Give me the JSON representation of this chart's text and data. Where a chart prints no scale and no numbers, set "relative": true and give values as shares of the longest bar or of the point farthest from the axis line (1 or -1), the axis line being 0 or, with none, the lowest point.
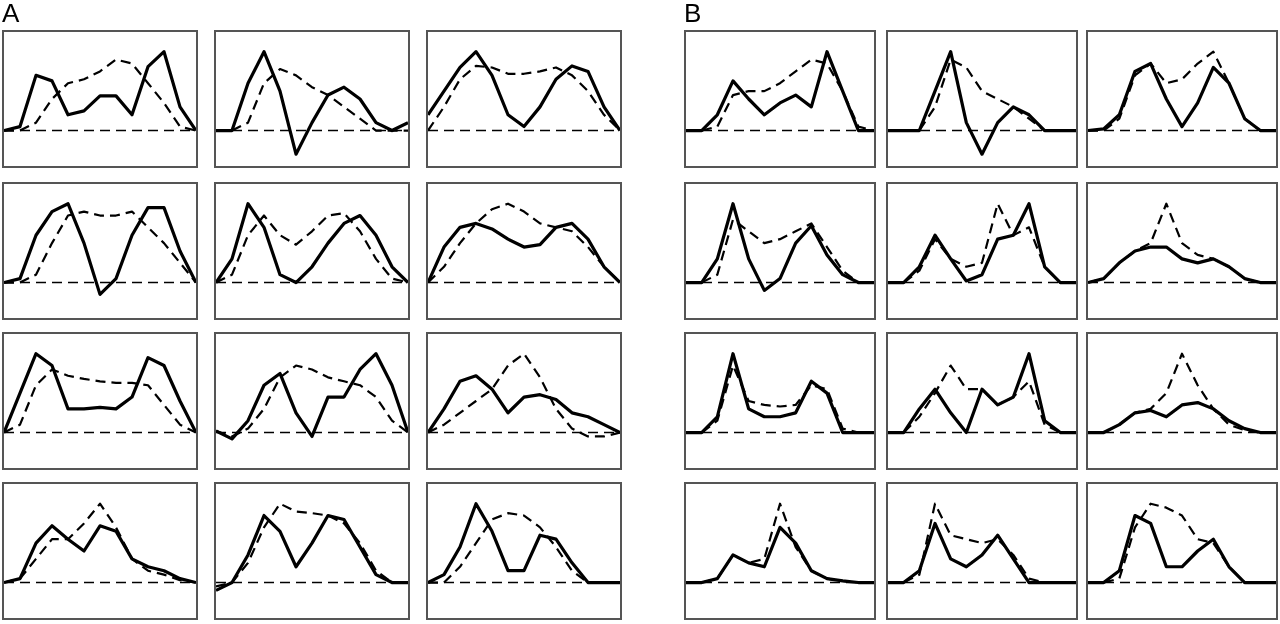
{
  "chart_data": [
    {
      "type": "line",
      "relative": true,
      "tick_labels": false,
      "annotations": [
        "A"
      ],
      "categories": [
        null,
        null,
        null,
        null,
        null,
        null,
        null,
        null,
        null,
        null,
        null,
        null,
        null
      ],
      "ref_lines": [
        {
          "axis": "y",
          "value": 0,
          "line_style": "dashed",
          "color": "#000000"
        }
      ],
      "series": [
        {
          "color": "#000000",
          "line_style": "solid",
          "values": [
            0,
            0.05,
            0.7,
            0.63,
            0.2,
            0.25,
            0.44,
            0.44,
            0.2,
            0.81,
            1,
            0.3,
            0
          ]
        },
        {
          "color": "#000000",
          "line_style": "dashed",
          "values": [
            0,
            0,
            0.1,
            0.4,
            0.6,
            0.65,
            0.75,
            0.9,
            0.85,
            0.6,
            0.35,
            0.05,
            0
          ]
        }
      ]
    },
    {
      "type": "line",
      "relative": true,
      "tick_labels": false,
      "categories": [
        null,
        null,
        null,
        null,
        null,
        null,
        null,
        null,
        null,
        null,
        null,
        null,
        null
      ],
      "ref_lines": [
        {
          "axis": "y",
          "value": 0,
          "line_style": "dashed",
          "color": "#000000"
        }
      ],
      "series": [
        {
          "color": "#000000",
          "line_style": "solid",
          "values": [
            0,
            0,
            0.6,
            1,
            0.5,
            -0.3,
            0.1,
            0.45,
            0.55,
            0.4,
            0.1,
            0,
            0.1
          ]
        },
        {
          "color": "#000000",
          "line_style": "dashed",
          "values": [
            0,
            0,
            0.1,
            0.6,
            0.78,
            0.7,
            0.55,
            0.45,
            0.3,
            0.15,
            0,
            0,
            0
          ]
        }
      ]
    },
    {
      "type": "line",
      "relative": true,
      "tick_labels": false,
      "categories": [
        null,
        null,
        null,
        null,
        null,
        null,
        null,
        null,
        null,
        null,
        null,
        null,
        null
      ],
      "ref_lines": [
        {
          "axis": "y",
          "value": 0,
          "line_style": "dashed",
          "color": "#000000"
        }
      ],
      "series": [
        {
          "color": "#000000",
          "line_style": "solid",
          "values": [
            0.2,
            0.5,
            0.8,
            1,
            0.7,
            0.2,
            0.05,
            0.3,
            0.65,
            0.82,
            0.75,
            0.3,
            0
          ]
        },
        {
          "color": "#000000",
          "line_style": "dashed",
          "values": [
            0,
            0.3,
            0.65,
            0.82,
            0.8,
            0.72,
            0.72,
            0.75,
            0.8,
            0.7,
            0.5,
            0.2,
            0
          ]
        }
      ]
    },
    {
      "type": "line",
      "relative": true,
      "tick_labels": false,
      "categories": [
        null,
        null,
        null,
        null,
        null,
        null,
        null,
        null,
        null,
        null,
        null,
        null,
        null
      ],
      "ref_lines": [
        {
          "axis": "y",
          "value": 0,
          "line_style": "dashed",
          "color": "#000000"
        }
      ],
      "series": [
        {
          "color": "#000000",
          "line_style": "solid",
          "values": [
            0,
            0.05,
            0.6,
            0.9,
            1,
            0.5,
            -0.15,
            0.05,
            0.6,
            0.95,
            0.95,
            0.4,
            0
          ]
        },
        {
          "color": "#000000",
          "line_style": "dashed",
          "values": [
            0,
            0,
            0.1,
            0.5,
            0.85,
            0.9,
            0.85,
            0.85,
            0.9,
            0.7,
            0.5,
            0.25,
            0
          ]
        }
      ]
    },
    {
      "type": "line",
      "relative": true,
      "tick_labels": false,
      "categories": [
        null,
        null,
        null,
        null,
        null,
        null,
        null,
        null,
        null,
        null,
        null,
        null,
        null
      ],
      "ref_lines": [
        {
          "axis": "y",
          "value": 0,
          "line_style": "dashed",
          "color": "#000000"
        }
      ],
      "series": [
        {
          "color": "#000000",
          "line_style": "solid",
          "values": [
            0,
            0.3,
            1,
            0.7,
            0.1,
            0,
            0.2,
            0.5,
            0.75,
            0.85,
            0.6,
            0.2,
            0
          ]
        },
        {
          "color": "#000000",
          "line_style": "dashed",
          "values": [
            0,
            0.1,
            0.6,
            0.85,
            0.6,
            0.48,
            0.65,
            0.85,
            0.88,
            0.65,
            0.3,
            0.05,
            0
          ]
        }
      ]
    },
    {
      "type": "line",
      "relative": true,
      "tick_labels": false,
      "categories": [
        null,
        null,
        null,
        null,
        null,
        null,
        null,
        null,
        null,
        null,
        null,
        null,
        null
      ],
      "ref_lines": [
        {
          "axis": "y",
          "value": 0,
          "line_style": "dashed",
          "color": "#000000"
        }
      ],
      "series": [
        {
          "color": "#000000",
          "line_style": "solid",
          "values": [
            0,
            0.45,
            0.7,
            0.75,
            0.68,
            0.55,
            0.45,
            0.48,
            0.7,
            0.75,
            0.55,
            0.2,
            0
          ]
        },
        {
          "color": "#000000",
          "line_style": "dashed",
          "values": [
            0,
            0.2,
            0.5,
            0.75,
            0.93,
            1,
            0.9,
            0.75,
            0.7,
            0.65,
            0.45,
            0.2,
            0
          ]
        }
      ]
    },
    {
      "type": "line",
      "relative": true,
      "tick_labels": false,
      "categories": [
        null,
        null,
        null,
        null,
        null,
        null,
        null,
        null,
        null,
        null,
        null,
        null,
        null
      ],
      "ref_lines": [
        {
          "axis": "y",
          "value": 0,
          "line_style": "dashed",
          "color": "#000000"
        }
      ],
      "series": [
        {
          "color": "#000000",
          "line_style": "solid",
          "values": [
            0,
            0.5,
            1,
            0.85,
            0.3,
            0.3,
            0.32,
            0.3,
            0.45,
            0.95,
            0.85,
            0.4,
            0
          ]
        },
        {
          "color": "#000000",
          "line_style": "dashed",
          "values": [
            0,
            0.1,
            0.6,
            0.8,
            0.72,
            0.68,
            0.65,
            0.63,
            0.63,
            0.6,
            0.35,
            0.1,
            0
          ]
        }
      ]
    },
    {
      "type": "line",
      "relative": true,
      "tick_labels": false,
      "categories": [
        null,
        null,
        null,
        null,
        null,
        null,
        null,
        null,
        null,
        null,
        null,
        null,
        null
      ],
      "ref_lines": [
        {
          "axis": "y",
          "value": 0,
          "line_style": "dashed",
          "color": "#000000"
        }
      ],
      "series": [
        {
          "color": "#000000",
          "line_style": "solid",
          "values": [
            0.02,
            -0.08,
            0.15,
            0.6,
            0.75,
            0.25,
            -0.05,
            0.45,
            0.45,
            0.8,
            1,
            0.6,
            0
          ]
        },
        {
          "color": "#000000",
          "line_style": "dashed",
          "values": [
            0.02,
            -0.05,
            0.05,
            0.3,
            0.7,
            0.85,
            0.8,
            0.7,
            0.65,
            0.6,
            0.45,
            0.15,
            0
          ]
        }
      ]
    },
    {
      "type": "line",
      "relative": true,
      "tick_labels": false,
      "categories": [
        null,
        null,
        null,
        null,
        null,
        null,
        null,
        null,
        null,
        null,
        null,
        null,
        null
      ],
      "ref_lines": [
        {
          "axis": "y",
          "value": 0,
          "line_style": "dashed",
          "color": "#000000"
        }
      ],
      "series": [
        {
          "color": "#000000",
          "line_style": "solid",
          "values": [
            0,
            0.3,
            0.65,
            0.72,
            0.55,
            0.25,
            0.45,
            0.48,
            0.42,
            0.25,
            0.2,
            0.1,
            0
          ]
        },
        {
          "color": "#000000",
          "line_style": "dashed",
          "values": [
            0,
            0.1,
            0.25,
            0.4,
            0.55,
            0.85,
            1,
            0.7,
            0.3,
            0.05,
            -0.05,
            -0.05,
            0
          ]
        }
      ]
    },
    {
      "type": "line",
      "relative": true,
      "tick_labels": false,
      "categories": [
        null,
        null,
        null,
        null,
        null,
        null,
        null,
        null,
        null,
        null,
        null,
        null,
        null
      ],
      "ref_lines": [
        {
          "axis": "y",
          "value": 0,
          "line_style": "dashed",
          "color": "#000000"
        }
      ],
      "series": [
        {
          "color": "#000000",
          "line_style": "solid",
          "values": [
            0,
            0.05,
            0.5,
            0.72,
            0.55,
            0.4,
            0.72,
            0.65,
            0.3,
            0.2,
            0.15,
            0.05,
            0
          ]
        },
        {
          "color": "#000000",
          "line_style": "dashed",
          "values": [
            0,
            0.05,
            0.3,
            0.55,
            0.55,
            0.75,
            1,
            0.7,
            0.3,
            0.15,
            0.1,
            0.03,
            0
          ]
        }
      ]
    },
    {
      "type": "line",
      "relative": true,
      "tick_labels": false,
      "categories": [
        null,
        null,
        null,
        null,
        null,
        null,
        null,
        null,
        null,
        null,
        null,
        null,
        null
      ],
      "ref_lines": [
        {
          "axis": "y",
          "value": 0,
          "line_style": "dashed",
          "color": "#000000"
        }
      ],
      "series": [
        {
          "color": "#000000",
          "line_style": "solid",
          "values": [
            -0.1,
            0,
            0.35,
            0.85,
            0.65,
            0.2,
            0.5,
            0.85,
            0.8,
            0.45,
            0.1,
            0,
            0
          ]
        },
        {
          "color": "#000000",
          "line_style": "dashed",
          "values": [
            -0.05,
            0,
            0.25,
            0.7,
            1,
            0.9,
            0.88,
            0.85,
            0.75,
            0.5,
            0.15,
            0,
            0
          ]
        }
      ]
    },
    {
      "type": "line",
      "relative": true,
      "tick_labels": false,
      "categories": [
        null,
        null,
        null,
        null,
        null,
        null,
        null,
        null,
        null,
        null,
        null,
        null,
        null
      ],
      "ref_lines": [
        {
          "axis": "y",
          "value": 0,
          "line_style": "dashed",
          "color": "#000000"
        }
      ],
      "series": [
        {
          "color": "#000000",
          "line_style": "solid",
          "values": [
            0,
            0.1,
            0.45,
            1,
            0.65,
            0.15,
            0.15,
            0.6,
            0.55,
            0.25,
            0,
            0,
            0
          ]
        },
        {
          "color": "#000000",
          "line_style": "dashed",
          "values": [
            0,
            0,
            0.2,
            0.5,
            0.8,
            0.88,
            0.85,
            0.7,
            0.45,
            0.15,
            0,
            0,
            0
          ]
        }
      ]
    },
    {
      "type": "line",
      "relative": true,
      "tick_labels": false,
      "annotations": [
        "B"
      ],
      "categories": [
        null,
        null,
        null,
        null,
        null,
        null,
        null,
        null,
        null,
        null,
        null,
        null,
        null
      ],
      "ref_lines": [
        {
          "axis": "y",
          "value": 0,
          "line_style": "dashed",
          "color": "#000000"
        }
      ],
      "series": [
        {
          "color": "#000000",
          "line_style": "solid",
          "values": [
            0,
            0,
            0.2,
            0.63,
            0.4,
            0.2,
            0.35,
            0.45,
            0.3,
            1,
            0.5,
            0,
            0
          ]
        },
        {
          "color": "#000000",
          "line_style": "dashed",
          "values": [
            0,
            0,
            0.05,
            0.45,
            0.5,
            0.5,
            0.6,
            0.75,
            0.9,
            0.85,
            0.5,
            0.05,
            0
          ]
        }
      ]
    },
    {
      "type": "line",
      "relative": true,
      "tick_labels": false,
      "categories": [
        null,
        null,
        null,
        null,
        null,
        null,
        null,
        null,
        null,
        null,
        null,
        null,
        null
      ],
      "ref_lines": [
        {
          "axis": "y",
          "value": 0,
          "line_style": "dashed",
          "color": "#000000"
        }
      ],
      "series": [
        {
          "color": "#000000",
          "line_style": "solid",
          "values": [
            0,
            0,
            0,
            0.5,
            1,
            0.1,
            -0.3,
            0.1,
            0.3,
            0.2,
            0,
            0,
            0
          ]
        },
        {
          "color": "#000000",
          "line_style": "dashed",
          "values": [
            0,
            0,
            0,
            0.3,
            0.9,
            0.8,
            0.5,
            0.4,
            0.3,
            0.15,
            0,
            0,
            0
          ]
        }
      ]
    },
    {
      "type": "line",
      "relative": true,
      "tick_labels": false,
      "categories": [
        null,
        null,
        null,
        null,
        null,
        null,
        null,
        null,
        null,
        null,
        null,
        null,
        null
      ],
      "ref_lines": [
        {
          "axis": "y",
          "value": 0,
          "line_style": "dashed",
          "color": "#000000"
        }
      ],
      "series": [
        {
          "color": "#000000",
          "line_style": "solid",
          "values": [
            0,
            0.02,
            0.2,
            0.75,
            0.85,
            0.4,
            0.05,
            0.35,
            0.8,
            0.6,
            0.15,
            0,
            0
          ]
        },
        {
          "color": "#000000",
          "line_style": "dashed",
          "values": [
            0,
            0,
            0.15,
            0.7,
            0.85,
            0.6,
            0.65,
            0.85,
            1,
            0.6,
            0.15,
            0,
            0
          ]
        }
      ]
    },
    {
      "type": "line",
      "relative": true,
      "tick_labels": false,
      "categories": [
        null,
        null,
        null,
        null,
        null,
        null,
        null,
        null,
        null,
        null,
        null,
        null,
        null
      ],
      "ref_lines": [
        {
          "axis": "y",
          "value": 0,
          "line_style": "dashed",
          "color": "#000000"
        }
      ],
      "series": [
        {
          "color": "#000000",
          "line_style": "solid",
          "values": [
            0,
            0,
            0.3,
            1,
            0.3,
            -0.1,
            0.05,
            0.5,
            0.72,
            0.35,
            0.1,
            0,
            0
          ]
        },
        {
          "color": "#000000",
          "line_style": "dashed",
          "values": [
            0,
            0,
            0.1,
            0.8,
            0.65,
            0.5,
            0.55,
            0.65,
            0.75,
            0.45,
            0.15,
            0,
            0
          ]
        }
      ]
    },
    {
      "type": "line",
      "relative": true,
      "tick_labels": false,
      "categories": [
        null,
        null,
        null,
        null,
        null,
        null,
        null,
        null,
        null,
        null,
        null,
        null,
        null
      ],
      "ref_lines": [
        {
          "axis": "y",
          "value": 0,
          "line_style": "dashed",
          "color": "#000000"
        }
      ],
      "series": [
        {
          "color": "#000000",
          "line_style": "solid",
          "values": [
            0,
            0,
            0.2,
            0.6,
            0.3,
            0.02,
            0.1,
            0.55,
            0.6,
            1,
            0.2,
            0,
            0
          ]
        },
        {
          "color": "#000000",
          "line_style": "dashed",
          "values": [
            0,
            0,
            0.15,
            0.55,
            0.3,
            0.2,
            0.25,
            1,
            0.6,
            0.7,
            0.2,
            0,
            0
          ]
        }
      ]
    },
    {
      "type": "line",
      "relative": true,
      "tick_labels": false,
      "categories": [
        null,
        null,
        null,
        null,
        null,
        null,
        null,
        null,
        null,
        null,
        null,
        null,
        null
      ],
      "ref_lines": [
        {
          "axis": "y",
          "value": 0,
          "line_style": "dashed",
          "color": "#000000"
        }
      ],
      "series": [
        {
          "color": "#000000",
          "line_style": "solid",
          "values": [
            0,
            0.05,
            0.25,
            0.4,
            0.45,
            0.45,
            0.3,
            0.25,
            0.3,
            0.2,
            0.05,
            0,
            0
          ]
        },
        {
          "color": "#000000",
          "line_style": "dashed",
          "values": [
            0,
            0.05,
            0.25,
            0.4,
            0.5,
            1,
            0.5,
            0.35,
            0.3,
            0.2,
            0.05,
            0,
            0
          ]
        }
      ]
    },
    {
      "type": "line",
      "relative": true,
      "tick_labels": false,
      "categories": [
        null,
        null,
        null,
        null,
        null,
        null,
        null,
        null,
        null,
        null,
        null,
        null,
        null
      ],
      "ref_lines": [
        {
          "axis": "y",
          "value": 0,
          "line_style": "dashed",
          "color": "#000000"
        }
      ],
      "series": [
        {
          "color": "#000000",
          "line_style": "solid",
          "values": [
            0,
            0,
            0.2,
            1,
            0.3,
            0.2,
            0.2,
            0.25,
            0.65,
            0.5,
            0,
            0,
            0
          ]
        },
        {
          "color": "#000000",
          "line_style": "dashed",
          "values": [
            0,
            0,
            0.15,
            0.85,
            0.4,
            0.35,
            0.33,
            0.35,
            0.6,
            0.55,
            0.05,
            0,
            0
          ]
        }
      ]
    },
    {
      "type": "line",
      "relative": true,
      "tick_labels": false,
      "categories": [
        null,
        null,
        null,
        null,
        null,
        null,
        null,
        null,
        null,
        null,
        null,
        null,
        null
      ],
      "ref_lines": [
        {
          "axis": "y",
          "value": 0,
          "line_style": "dashed",
          "color": "#000000"
        }
      ],
      "series": [
        {
          "color": "#000000",
          "line_style": "solid",
          "values": [
            0,
            0,
            0.3,
            0.55,
            0.25,
            0,
            0.55,
            0.35,
            0.45,
            1,
            0.15,
            0,
            0
          ]
        },
        {
          "color": "#000000",
          "line_style": "dashed",
          "values": [
            0,
            0,
            0.2,
            0.5,
            0.85,
            0.55,
            0.55,
            0.35,
            0.45,
            0.65,
            0.1,
            0,
            0
          ]
        }
      ]
    },
    {
      "type": "line",
      "relative": true,
      "tick_labels": false,
      "categories": [
        null,
        null,
        null,
        null,
        null,
        null,
        null,
        null,
        null,
        null,
        null,
        null,
        null
      ],
      "ref_lines": [
        {
          "axis": "y",
          "value": 0,
          "line_style": "dashed",
          "color": "#000000"
        }
      ],
      "series": [
        {
          "color": "#000000",
          "line_style": "solid",
          "values": [
            0,
            0,
            0.1,
            0.25,
            0.28,
            0.2,
            0.35,
            0.38,
            0.3,
            0.15,
            0.05,
            0,
            0
          ]
        },
        {
          "color": "#000000",
          "line_style": "dashed",
          "values": [
            0,
            0,
            0.1,
            0.25,
            0.3,
            0.5,
            1,
            0.6,
            0.3,
            0.1,
            0.03,
            0,
            0
          ]
        }
      ]
    },
    {
      "type": "line",
      "relative": true,
      "tick_labels": false,
      "categories": [
        null,
        null,
        null,
        null,
        null,
        null,
        null,
        null,
        null,
        null,
        null,
        null,
        null
      ],
      "ref_lines": [
        {
          "axis": "y",
          "value": 0,
          "line_style": "dashed",
          "color": "#000000"
        }
      ],
      "series": [
        {
          "color": "#000000",
          "line_style": "solid",
          "values": [
            0,
            0,
            0.05,
            0.35,
            0.25,
            0.2,
            0.7,
            0.5,
            0.15,
            0.05,
            0.02,
            0,
            0
          ]
        },
        {
          "color": "#000000",
          "line_style": "dashed",
          "values": [
            0,
            0,
            0.05,
            0.35,
            0.25,
            0.3,
            1,
            0.45,
            0.15,
            0.05,
            0.02,
            0,
            0
          ]
        }
      ]
    },
    {
      "type": "line",
      "relative": true,
      "tick_labels": false,
      "categories": [
        null,
        null,
        null,
        null,
        null,
        null,
        null,
        null,
        null,
        null,
        null,
        null,
        null
      ],
      "ref_lines": [
        {
          "axis": "y",
          "value": 0,
          "line_style": "dashed",
          "color": "#000000"
        }
      ],
      "series": [
        {
          "color": "#000000",
          "line_style": "solid",
          "values": [
            0,
            0,
            0.15,
            0.75,
            0.3,
            0.2,
            0.35,
            0.6,
            0.3,
            0,
            0,
            0,
            0
          ]
        },
        {
          "color": "#000000",
          "line_style": "dashed",
          "values": [
            0,
            0,
            0.1,
            1,
            0.6,
            0.55,
            0.5,
            0.55,
            0.35,
            0.05,
            0,
            0,
            0
          ]
        }
      ]
    },
    {
      "type": "line",
      "relative": true,
      "tick_labels": false,
      "categories": [
        null,
        null,
        null,
        null,
        null,
        null,
        null,
        null,
        null,
        null,
        null,
        null,
        null
      ],
      "ref_lines": [
        {
          "axis": "y",
          "value": 0,
          "line_style": "dashed",
          "color": "#000000"
        }
      ],
      "series": [
        {
          "color": "#000000",
          "line_style": "solid",
          "values": [
            0,
            0,
            0.15,
            0.85,
            0.75,
            0.2,
            0.2,
            0.4,
            0.55,
            0.2,
            0,
            0,
            0
          ]
        },
        {
          "color": "#000000",
          "line_style": "dashed",
          "values": [
            0,
            0,
            0.05,
            0.7,
            1,
            0.95,
            0.85,
            0.55,
            0.5,
            0.2,
            0,
            0,
            0
          ]
        }
      ]
    }
  ]
}
